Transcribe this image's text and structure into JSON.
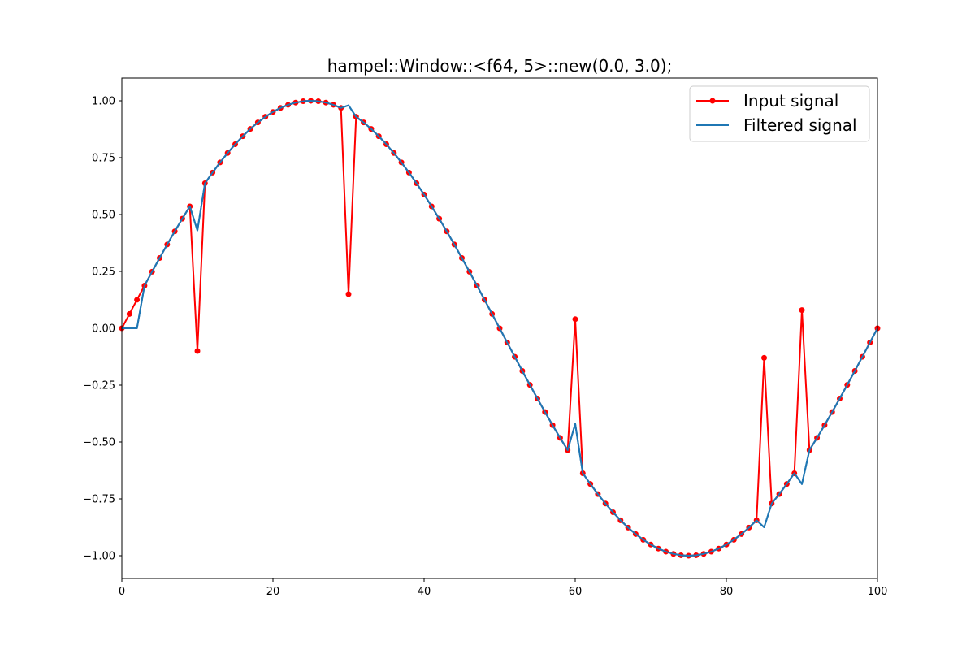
{
  "chart_data": {
    "type": "line",
    "title": "hampel::Window::<f64, 5>::new(0.0, 3.0);",
    "xlabel": "",
    "ylabel": "",
    "xlim": [
      0,
      100
    ],
    "ylim": [
      -1.1,
      1.1
    ],
    "x_ticks": [
      0,
      20,
      40,
      60,
      80,
      100
    ],
    "y_ticks": [
      -1.0,
      -0.75,
      -0.5,
      -0.25,
      0.0,
      0.25,
      0.5,
      0.75,
      1.0
    ],
    "x_tick_labels": [
      "0",
      "20",
      "40",
      "60",
      "80",
      "100"
    ],
    "y_tick_labels": [
      "−1.00",
      "−0.75",
      "−0.50",
      "−0.25",
      "0.00",
      "0.25",
      "0.50",
      "0.75",
      "1.00"
    ],
    "grid": false,
    "legend_position": "top-right",
    "x": [
      0,
      1,
      2,
      3,
      4,
      5,
      6,
      7,
      8,
      9,
      10,
      11,
      12,
      13,
      14,
      15,
      16,
      17,
      18,
      19,
      20,
      21,
      22,
      23,
      24,
      25,
      26,
      27,
      28,
      29,
      30,
      31,
      32,
      33,
      34,
      35,
      36,
      37,
      38,
      39,
      40,
      41,
      42,
      43,
      44,
      45,
      46,
      47,
      48,
      49,
      50,
      51,
      52,
      53,
      54,
      55,
      56,
      57,
      58,
      59,
      60,
      61,
      62,
      63,
      64,
      65,
      66,
      67,
      68,
      69,
      70,
      71,
      72,
      73,
      74,
      75,
      76,
      77,
      78,
      79,
      80,
      81,
      82,
      83,
      84,
      85,
      86,
      87,
      88,
      89,
      90,
      91,
      92,
      93,
      94,
      95,
      96,
      97,
      98,
      99,
      100
    ],
    "series": [
      {
        "name": "Input signal",
        "color": "#ff0000",
        "marker": "circle",
        "values": [
          0.0,
          0.0628,
          0.1253,
          0.1874,
          0.2487,
          0.309,
          0.3681,
          0.4258,
          0.4818,
          0.5358,
          -0.1,
          0.6374,
          0.6845,
          0.729,
          0.7705,
          0.809,
          0.8443,
          0.8763,
          0.9048,
          0.9298,
          0.9511,
          0.9686,
          0.9823,
          0.9921,
          0.998,
          1.0,
          0.998,
          0.9921,
          0.9823,
          0.9686,
          0.15,
          0.9298,
          0.9048,
          0.8763,
          0.8443,
          0.809,
          0.7705,
          0.729,
          0.6845,
          0.6374,
          0.5878,
          0.5358,
          0.4818,
          0.4258,
          0.3681,
          0.309,
          0.2487,
          0.1874,
          0.1253,
          0.0628,
          0.0,
          -0.0628,
          -0.1253,
          -0.1874,
          -0.2487,
          -0.309,
          -0.3681,
          -0.4258,
          -0.4818,
          -0.5358,
          0.04,
          -0.6374,
          -0.6845,
          -0.729,
          -0.7705,
          -0.809,
          -0.8443,
          -0.8763,
          -0.9048,
          -0.9298,
          -0.9511,
          -0.9686,
          -0.9823,
          -0.9921,
          -0.998,
          -1.0,
          -0.998,
          -0.9921,
          -0.9823,
          -0.9686,
          -0.9511,
          -0.9298,
          -0.9048,
          -0.8763,
          -0.8443,
          -0.13,
          -0.7705,
          -0.729,
          -0.6845,
          -0.6374,
          0.08,
          -0.5358,
          -0.4818,
          -0.4258,
          -0.3681,
          -0.309,
          -0.2487,
          -0.1874,
          -0.1253,
          -0.0628,
          0.0
        ]
      },
      {
        "name": "Filtered signal",
        "color": "#1f77b4",
        "marker": "none",
        "values": [
          0.0,
          0.0,
          0.0,
          0.1874,
          0.2487,
          0.309,
          0.3681,
          0.4258,
          0.4818,
          0.5358,
          0.43,
          0.6374,
          0.6845,
          0.729,
          0.7705,
          0.809,
          0.8443,
          0.8763,
          0.9048,
          0.9298,
          0.9511,
          0.9686,
          0.9823,
          0.9921,
          0.998,
          1.0,
          0.998,
          0.9921,
          0.9823,
          0.9686,
          0.98,
          0.9298,
          0.9048,
          0.8763,
          0.8443,
          0.809,
          0.7705,
          0.729,
          0.6845,
          0.6374,
          0.5878,
          0.5358,
          0.4818,
          0.4258,
          0.3681,
          0.309,
          0.2487,
          0.1874,
          0.1253,
          0.0628,
          0.0,
          -0.0628,
          -0.1253,
          -0.1874,
          -0.2487,
          -0.309,
          -0.3681,
          -0.4258,
          -0.4818,
          -0.5358,
          -0.42,
          -0.6374,
          -0.6845,
          -0.729,
          -0.7705,
          -0.809,
          -0.8443,
          -0.8763,
          -0.9048,
          -0.9298,
          -0.9511,
          -0.9686,
          -0.9823,
          -0.9921,
          -0.998,
          -1.0,
          -0.998,
          -0.9921,
          -0.9823,
          -0.9686,
          -0.9511,
          -0.9298,
          -0.9048,
          -0.8763,
          -0.8443,
          -0.875,
          -0.7705,
          -0.729,
          -0.6845,
          -0.6374,
          -0.685,
          -0.5358,
          -0.4818,
          -0.4258,
          -0.3681,
          -0.309,
          -0.2487,
          -0.1874,
          -0.1253,
          -0.0628,
          0.0
        ]
      }
    ]
  }
}
